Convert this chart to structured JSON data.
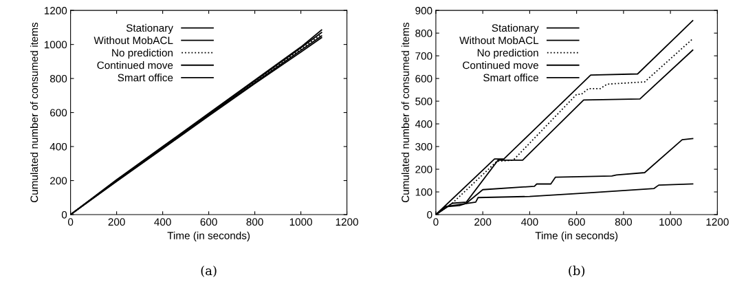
{
  "chart_data": [
    {
      "type": "line",
      "xlabel": "Time (in seconds)",
      "ylabel": "Cumulated number of consumed items",
      "xlim": [
        0,
        1200
      ],
      "ylim": [
        0,
        1200
      ],
      "xticks": [
        0,
        200,
        400,
        600,
        800,
        1000,
        1200
      ],
      "yticks": [
        0,
        200,
        400,
        600,
        800,
        1000,
        1200
      ],
      "legend": "top left",
      "annotations": [
        "(a)"
      ],
      "series": [
        {
          "name": "Stationary",
          "color": "#000000",
          "line_style": "solid",
          "x": [
            0,
            200,
            400,
            600,
            800,
            1000,
            1090
          ],
          "values": [
            0,
            205,
            400,
            595,
            790,
            985,
            1085
          ]
        },
        {
          "name": "Without MobACL",
          "color": "#000000",
          "line_style": "solid",
          "x": [
            0,
            200,
            400,
            600,
            800,
            1000,
            1090
          ],
          "values": [
            0,
            200,
            395,
            590,
            785,
            980,
            1070
          ]
        },
        {
          "name": "No prediction",
          "color": "#000000",
          "line_style": "dotted",
          "x": [
            0,
            200,
            400,
            600,
            800,
            1000,
            1090
          ],
          "values": [
            0,
            200,
            393,
            588,
            780,
            972,
            1060
          ]
        },
        {
          "name": "Continued move",
          "color": "#000000",
          "line_style": "solid",
          "x": [
            0,
            200,
            400,
            600,
            800,
            1000,
            1090
          ],
          "values": [
            0,
            198,
            390,
            585,
            775,
            965,
            1050
          ]
        },
        {
          "name": "Smart office",
          "color": "#000000",
          "line_style": "solid",
          "x": [
            0,
            200,
            400,
            600,
            800,
            1000,
            1090
          ],
          "values": [
            0,
            195,
            387,
            580,
            770,
            955,
            1040
          ]
        }
      ]
    },
    {
      "type": "line",
      "xlabel": "Time (in seconds)",
      "ylabel": "Cumulated number of consumed items",
      "xlim": [
        0,
        1200
      ],
      "ylim": [
        0,
        900
      ],
      "xticks": [
        0,
        200,
        400,
        600,
        800,
        1000,
        1200
      ],
      "yticks": [
        0,
        100,
        200,
        300,
        400,
        500,
        600,
        700,
        800,
        900
      ],
      "legend": "top left",
      "annotations": [
        "(b)"
      ],
      "series": [
        {
          "name": "Stationary",
          "color": "#000000",
          "line_style": "solid",
          "x": [
            0,
            250,
            290,
            660,
            860,
            1095
          ],
          "values": [
            0,
            245,
            245,
            615,
            620,
            855
          ]
        },
        {
          "name": "Without MobACL",
          "color": "#000000",
          "line_style": "solid",
          "x": [
            0,
            50,
            100,
            130,
            200,
            420,
            430,
            490,
            510,
            750,
            770,
            890,
            1050,
            1095
          ],
          "values": [
            0,
            35,
            40,
            50,
            110,
            125,
            135,
            135,
            165,
            170,
            175,
            185,
            330,
            335
          ]
        },
        {
          "name": "No prediction",
          "color": "#000000",
          "line_style": "dotted",
          "x": [
            0,
            70,
            260,
            330,
            600,
            620,
            650,
            700,
            730,
            890,
            1095
          ],
          "values": [
            0,
            50,
            235,
            240,
            530,
            530,
            555,
            555,
            575,
            585,
            775
          ]
        },
        {
          "name": "Continued move",
          "color": "#000000",
          "line_style": "solid",
          "x": [
            0,
            70,
            130,
            265,
            370,
            630,
            870,
            1095
          ],
          "values": [
            0,
            50,
            55,
            240,
            240,
            505,
            510,
            725
          ]
        },
        {
          "name": "Smart office",
          "color": "#000000",
          "line_style": "solid",
          "x": [
            0,
            40,
            170,
            180,
            400,
            640,
            930,
            950,
            1095
          ],
          "values": [
            0,
            35,
            55,
            75,
            80,
            95,
            115,
            130,
            135
          ]
        }
      ]
    }
  ]
}
